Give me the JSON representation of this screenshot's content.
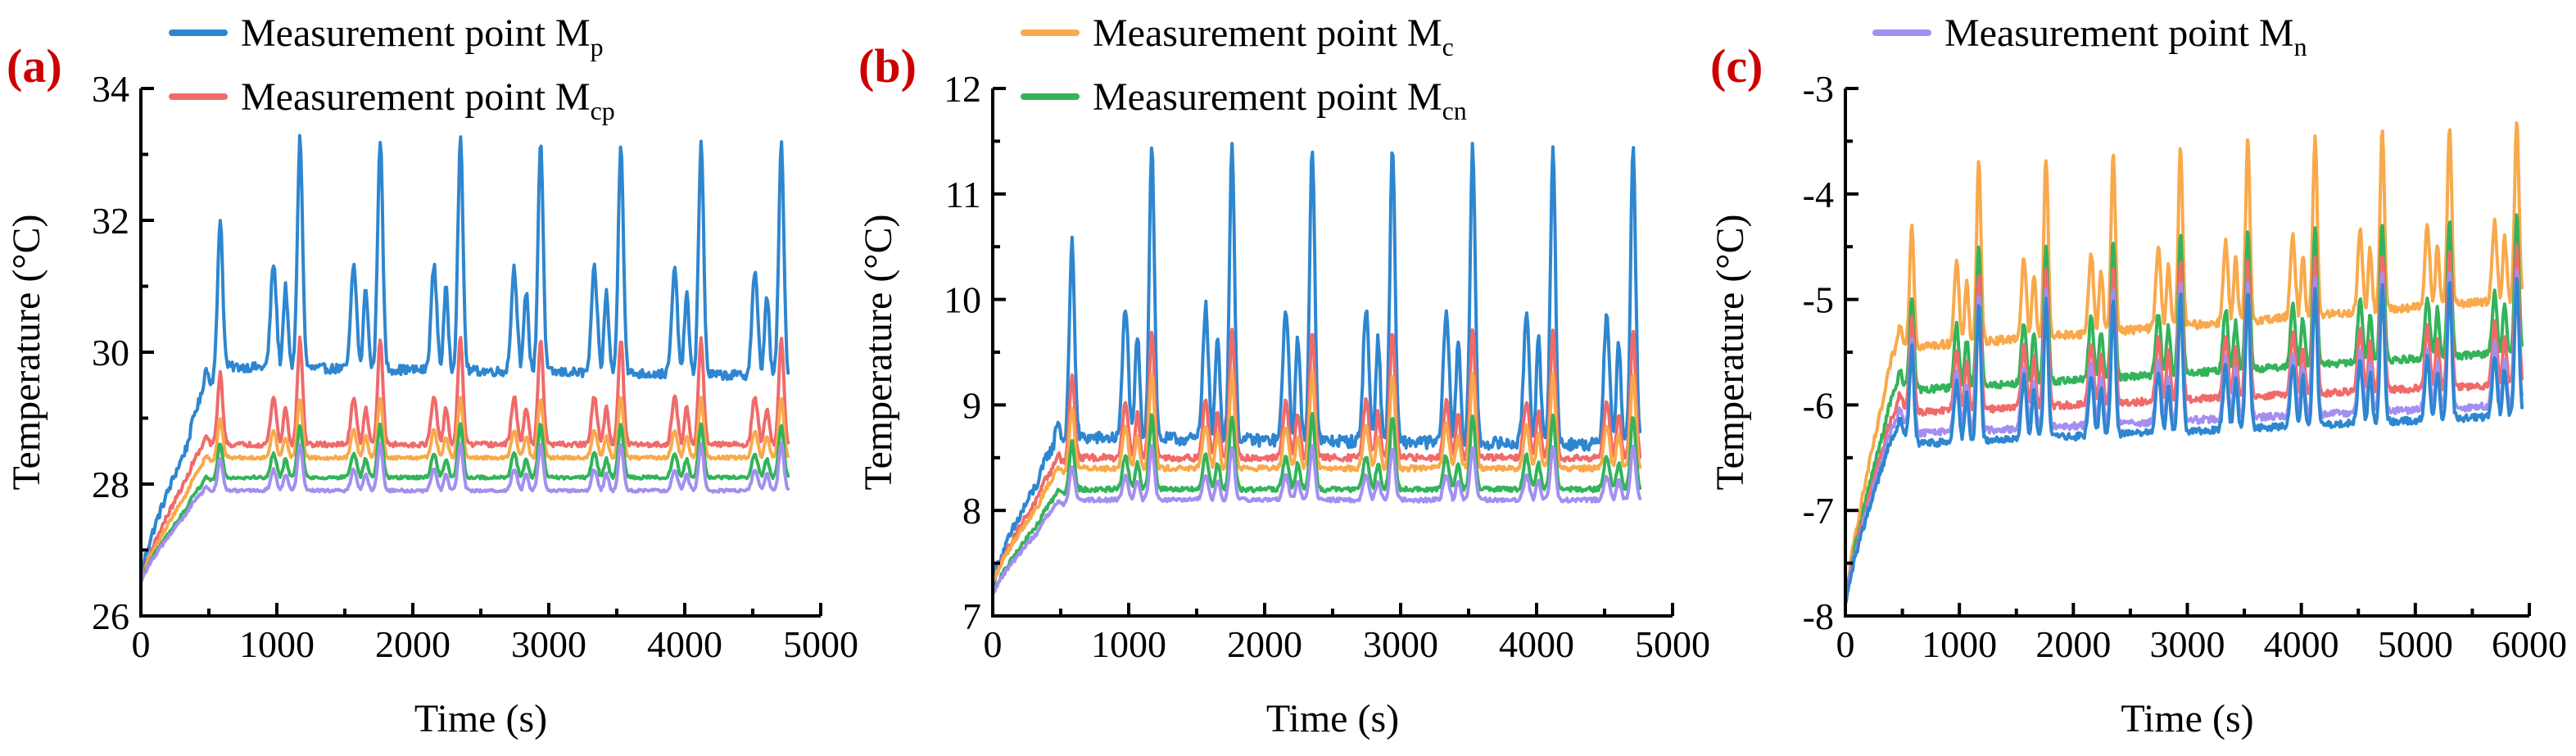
{
  "colors": {
    "Mp": "#2e86d0",
    "Mcp": "#f06a6a",
    "Mc": "#f9a94b",
    "Mcn": "#33b35a",
    "Mn": "#a48ef0",
    "panel_label": "#cc0000"
  },
  "chart_data": [
    {
      "type": "line",
      "panel": "(a)",
      "xlabel": "Time (s)",
      "ylabel": "Temperature (°C)",
      "xlim": [
        0,
        5000
      ],
      "ylim": [
        26,
        34
      ],
      "xticks": [
        "0",
        "1000",
        "2000",
        "3000",
        "4000",
        "5000"
      ],
      "yticks": [
        "26",
        "28",
        "30",
        "32",
        "34"
      ],
      "legend": [
        {
          "base": "Measurement point M",
          "sub": "p",
          "key": "Mp"
        },
        {
          "base": "Measurement point M",
          "sub": "cp",
          "key": "Mcp"
        }
      ],
      "period": 590,
      "x_end": 4760,
      "series": [
        {
          "key": "Mp",
          "start": 26.6,
          "ramp_end": 29.2,
          "peak": 33.3,
          "valley": 29.8,
          "drift": -0.02
        },
        {
          "key": "Mcp",
          "start": 26.5,
          "ramp_end": 28.6,
          "peak": 30.2,
          "valley": 28.6,
          "drift": 0.0
        },
        {
          "key": "Mc",
          "start": 26.5,
          "ramp_end": 28.3,
          "peak": 29.3,
          "valley": 28.4,
          "drift": 0.0
        },
        {
          "key": "Mcn",
          "start": 26.5,
          "ramp_end": 28.0,
          "peak": 28.9,
          "valley": 28.1,
          "drift": 0.0
        },
        {
          "key": "Mn",
          "start": 26.5,
          "ramp_end": 27.9,
          "peak": 28.6,
          "valley": 27.9,
          "drift": 0.0
        }
      ]
    },
    {
      "type": "line",
      "panel": "(b)",
      "xlabel": "Time (s)",
      "ylabel": "Temperature (°C)",
      "xlim": [
        0,
        5000
      ],
      "ylim": [
        7,
        12
      ],
      "xticks": [
        "0",
        "1000",
        "2000",
        "3000",
        "4000",
        "5000"
      ],
      "yticks": [
        "7",
        "8",
        "9",
        "10",
        "11",
        "12"
      ],
      "legend": [
        {
          "base": "Measurement point M",
          "sub": "c",
          "key": "Mc"
        },
        {
          "base": "Measurement point M",
          "sub": "cn",
          "key": "Mcn"
        }
      ],
      "period": 590,
      "x_end": 4760,
      "series": [
        {
          "key": "Mp",
          "start": 7.3,
          "ramp_end": 8.6,
          "peak": 11.5,
          "valley": 8.7,
          "drift": -0.01
        },
        {
          "key": "Mcp",
          "start": 7.3,
          "ramp_end": 8.4,
          "peak": 9.7,
          "valley": 8.5,
          "drift": 0.0
        },
        {
          "key": "Mc",
          "start": 7.3,
          "ramp_end": 8.3,
          "peak": 9.3,
          "valley": 8.4,
          "drift": 0.0
        },
        {
          "key": "Mcn",
          "start": 7.2,
          "ramp_end": 8.1,
          "peak": 8.9,
          "valley": 8.2,
          "drift": 0.0
        },
        {
          "key": "Mn",
          "start": 7.2,
          "ramp_end": 8.0,
          "peak": 8.6,
          "valley": 8.1,
          "drift": 0.0
        }
      ]
    },
    {
      "type": "line",
      "panel": "(c)",
      "xlabel": "Time (s)",
      "ylabel": "Temperature (°C)",
      "xlim": [
        0,
        6000
      ],
      "ylim": [
        -8,
        -3
      ],
      "xticks": [
        "0",
        "1000",
        "2000",
        "3000",
        "4000",
        "5000",
        "6000"
      ],
      "yticks": [
        "-8",
        "-7",
        "-6",
        "-5",
        "-4",
        "-3"
      ],
      "legend": [
        {
          "base": "Measurement point M",
          "sub": "n",
          "key": "Mn"
        }
      ],
      "period": 590,
      "x_end": 5940,
      "series": [
        {
          "key": "Mc",
          "start": -7.9,
          "ramp_end": -5.3,
          "peak": -3.8,
          "valley": -5.5,
          "drift": 0.05
        },
        {
          "key": "Mcn",
          "start": -7.9,
          "ramp_end": -5.7,
          "peak": -4.6,
          "valley": -5.9,
          "drift": 0.04
        },
        {
          "key": "Mcp",
          "start": -7.9,
          "ramp_end": -5.9,
          "peak": -4.8,
          "valley": -6.1,
          "drift": 0.03
        },
        {
          "key": "Mn",
          "start": -7.9,
          "ramp_end": -6.0,
          "peak": -5.0,
          "valley": -6.3,
          "drift": 0.03
        },
        {
          "key": "Mp",
          "start": -7.9,
          "ramp_end": -6.1,
          "peak": -5.1,
          "valley": -6.4,
          "drift": 0.03
        }
      ]
    }
  ]
}
